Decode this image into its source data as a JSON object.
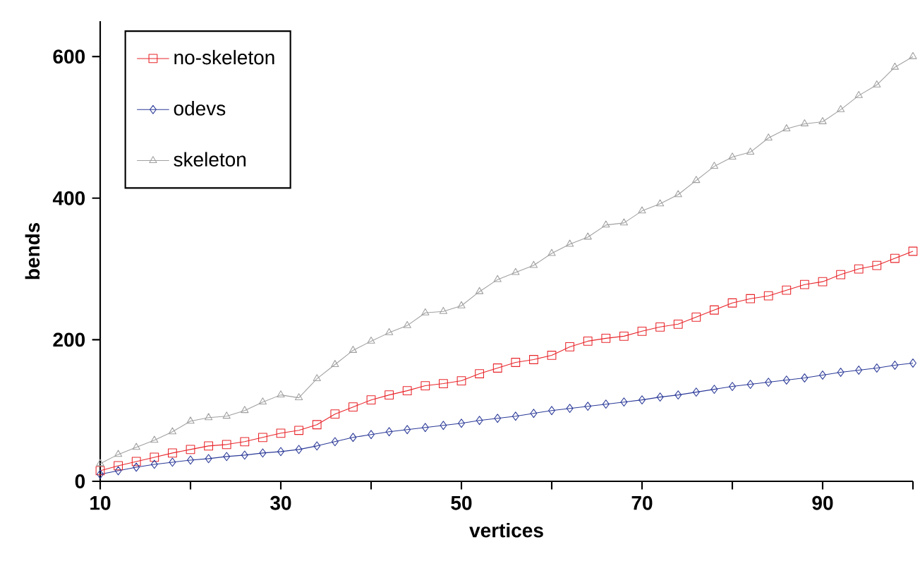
{
  "chart_data": {
    "type": "line",
    "xlabel": "vertices",
    "ylabel": "bends",
    "x": [
      10,
      12,
      14,
      16,
      18,
      20,
      22,
      24,
      26,
      28,
      30,
      32,
      34,
      36,
      38,
      40,
      42,
      44,
      46,
      48,
      50,
      52,
      54,
      56,
      58,
      60,
      62,
      64,
      66,
      68,
      70,
      72,
      74,
      76,
      78,
      80,
      82,
      84,
      86,
      88,
      90,
      92,
      94,
      96,
      98,
      100
    ],
    "series": [
      {
        "name": "no-skeleton",
        "color": "#e8262b",
        "marker": "square",
        "values": [
          15,
          22,
          28,
          34,
          40,
          45,
          50,
          52,
          56,
          62,
          68,
          72,
          80,
          95,
          105,
          115,
          122,
          128,
          135,
          138,
          142,
          152,
          160,
          168,
          172,
          178,
          190,
          198,
          202,
          205,
          212,
          218,
          222,
          232,
          242,
          252,
          258,
          262,
          270,
          278,
          282,
          292,
          300,
          305,
          315,
          325
        ]
      },
      {
        "name": "odevs",
        "color": "#2b3a98",
        "marker": "diamond",
        "values": [
          10,
          15,
          20,
          24,
          27,
          30,
          32,
          35,
          37,
          40,
          42,
          45,
          50,
          56,
          62,
          66,
          70,
          73,
          76,
          79,
          82,
          86,
          89,
          92,
          96,
          100,
          103,
          106,
          109,
          112,
          115,
          119,
          122,
          126,
          130,
          134,
          137,
          140,
          143,
          146,
          150,
          154,
          157,
          160,
          164,
          167
        ]
      },
      {
        "name": "skeleton",
        "color": "#a0a0a0",
        "marker": "triangle",
        "values": [
          25,
          38,
          48,
          58,
          70,
          85,
          90,
          92,
          100,
          112,
          122,
          118,
          145,
          165,
          185,
          198,
          210,
          220,
          238,
          240,
          248,
          268,
          285,
          295,
          305,
          322,
          335,
          345,
          362,
          365,
          382,
          392,
          405,
          425,
          445,
          458,
          465,
          485,
          498,
          505,
          508,
          525,
          545,
          560,
          585,
          600
        ]
      }
    ],
    "xlim": [
      10,
      100
    ],
    "ylim": [
      0,
      650
    ],
    "xticks": [
      10,
      {
        "value": 20,
        "label": null
      },
      30,
      {
        "value": 40,
        "label": null
      },
      50,
      {
        "value": 60,
        "label": null
      },
      70,
      {
        "value": 80,
        "label": null
      },
      90,
      {
        "value": 100,
        "label": null
      }
    ],
    "yticks": [
      0,
      200,
      400,
      600
    ],
    "grid": false,
    "legend": "top left",
    "line_style": "solid"
  }
}
